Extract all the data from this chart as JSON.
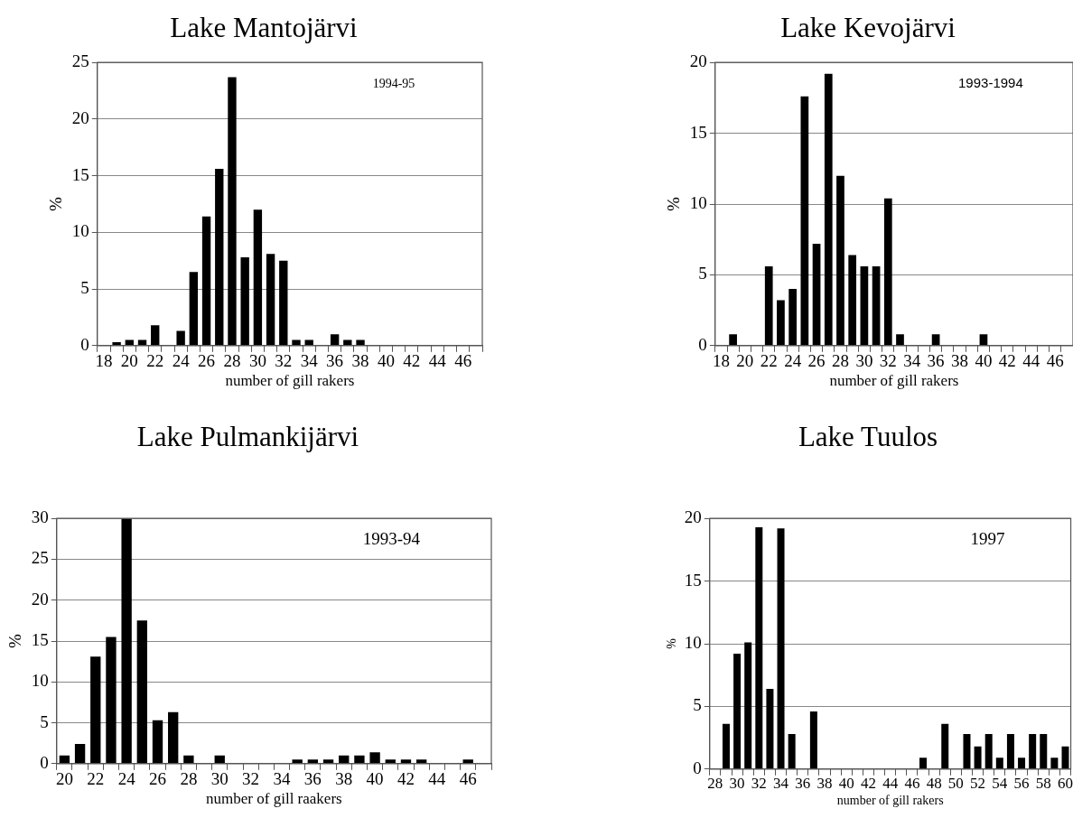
{
  "chart_data": [
    {
      "type": "bar",
      "title": "Lake Mantojärvi",
      "xlabel": "number of gill rakers",
      "ylabel": "%",
      "annotations": [
        "1994-95"
      ],
      "categories": [
        "18",
        null,
        "20",
        null,
        "22",
        null,
        "24",
        null,
        "26",
        null,
        "28",
        null,
        "30",
        null,
        "32",
        null,
        "34",
        null,
        "36",
        null,
        "38",
        null,
        "40",
        null,
        "42",
        null,
        "44",
        null,
        "46",
        null
      ],
      "values": [
        0,
        0.3,
        0.5,
        0.5,
        1.8,
        0,
        1.3,
        6.5,
        11.4,
        15.6,
        23.7,
        7.8,
        12.0,
        8.1,
        7.5,
        0.5,
        0.5,
        0,
        1.0,
        0.5,
        0.5,
        0,
        0,
        0,
        0,
        0,
        0,
        0,
        0,
        0
      ],
      "color": "#000000",
      "ylim": [
        0,
        25
      ],
      "yticks": [
        0,
        5,
        10,
        15,
        20,
        25
      ],
      "grid": "y",
      "legend": false
    },
    {
      "type": "bar",
      "title": "Lake Kevojärvi",
      "xlabel": "number of gill rakers",
      "ylabel": "%",
      "annotations": [
        "1993-1994"
      ],
      "categories": [
        "18",
        null,
        "20",
        null,
        "22",
        null,
        "24",
        null,
        "26",
        null,
        "28",
        null,
        "30",
        null,
        "32",
        null,
        "34",
        null,
        "36",
        null,
        "38",
        null,
        "40",
        null,
        "42",
        null,
        "44",
        null,
        "46",
        null
      ],
      "values": [
        0,
        0.8,
        0,
        0,
        5.6,
        3.2,
        4.0,
        17.6,
        7.2,
        19.2,
        12.0,
        6.4,
        5.6,
        5.6,
        10.4,
        0.8,
        0,
        0,
        0.8,
        0,
        0,
        0,
        0.8,
        0,
        0,
        0,
        0,
        0,
        0,
        0
      ],
      "color": "#000000",
      "ylim": [
        0,
        20
      ],
      "yticks": [
        0,
        5,
        10,
        15,
        20
      ],
      "grid": "y",
      "legend": false
    },
    {
      "type": "bar",
      "title": "Lake Pulmankijärvi",
      "xlabel": "number of gill raakers",
      "ylabel": "%",
      "annotations": [
        "1993-94"
      ],
      "categories": [
        "20",
        null,
        "22",
        null,
        "24",
        null,
        "26",
        null,
        "28",
        null,
        "30",
        null,
        "32",
        null,
        "34",
        null,
        "36",
        null,
        "38",
        null,
        "40",
        null,
        "42",
        null,
        "44",
        null,
        "46",
        null
      ],
      "values": [
        1.0,
        2.4,
        13.1,
        15.5,
        30,
        17.5,
        5.3,
        6.3,
        1.0,
        0,
        1.0,
        0,
        0,
        0,
        0,
        0.5,
        0.5,
        0.5,
        1.0,
        1.0,
        1.4,
        0.5,
        0.5,
        0.5,
        0,
        0,
        0.5,
        0
      ],
      "color": "#000000",
      "ylim": [
        0,
        30
      ],
      "yticks": [
        0,
        5,
        10,
        15,
        20,
        25,
        30
      ],
      "grid": "y",
      "legend": false
    },
    {
      "type": "bar",
      "title": "Lake Tuulos",
      "xlabel": "number of gill rakers",
      "ylabel": "%",
      "annotations": [
        "1997"
      ],
      "categories": [
        "28",
        null,
        "30",
        null,
        "32",
        null,
        "34",
        null,
        "36",
        null,
        "38",
        null,
        "40",
        null,
        "42",
        null,
        "44",
        null,
        "46",
        null,
        "48",
        null,
        "50",
        null,
        "52",
        null,
        "54",
        null,
        "56",
        null,
        "58",
        null,
        "60"
      ],
      "values": [
        0,
        3.6,
        9.2,
        10.1,
        19.3,
        6.4,
        19.2,
        2.8,
        0,
        4.6,
        0,
        0,
        0,
        0,
        0,
        0,
        0,
        0,
        0,
        0.9,
        0,
        3.6,
        0,
        2.8,
        1.8,
        2.8,
        0.9,
        2.8,
        0.9,
        2.8,
        2.8,
        0.9,
        1.8
      ],
      "color": "#000000",
      "ylim": [
        0,
        20
      ],
      "yticks": [
        0,
        5,
        10,
        15,
        20
      ],
      "grid": "y",
      "legend": false
    }
  ]
}
